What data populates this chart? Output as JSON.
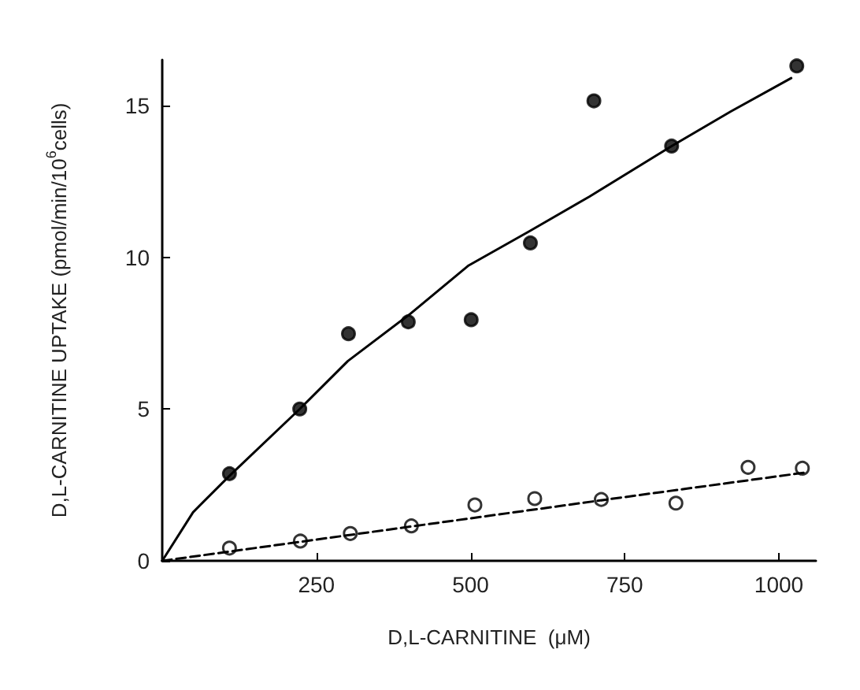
{
  "chart_data": {
    "type": "scatter",
    "xlabel": "D,L-CARNITINE  (μM)",
    "ylabel": "D,L-CARNITINE UPTAKE (pmol/min/10$^{6}$cells)",
    "xlim": [
      0,
      1060
    ],
    "ylim": [
      0,
      16.5
    ],
    "xticks": [
      250,
      500,
      750,
      1000
    ],
    "yticks": [
      0,
      5,
      10,
      15
    ],
    "grid": false,
    "marker": "circle",
    "series": [
      {
        "color": "#000000",
        "x": [
          109,
          223,
          302,
          399,
          501,
          597,
          700,
          826,
          1029
        ],
        "values": [
          2.87,
          5.0,
          7.48,
          7.87,
          7.94,
          10.47,
          15.15,
          13.66,
          16.3
        ]
      },
      {
        "color": "#ffffff",
        "x": [
          109,
          224,
          305,
          404,
          507,
          604,
          712,
          833,
          950,
          1038
        ],
        "values": [
          0.42,
          0.65,
          0.9,
          1.15,
          1.84,
          2.05,
          2.02,
          1.9,
          3.08,
          3.05
        ]
      },
      {
        "type": "line",
        "color": "#000000",
        "line_style": "solid",
        "marker": "none",
        "x": [
          0,
          50,
          109,
          223,
          301,
          400,
          497,
          595,
          693,
          826,
          922,
          1020
        ],
        "values": [
          0,
          1.6,
          2.8,
          5.0,
          6.58,
          8.1,
          9.73,
          10.85,
          12.0,
          13.66,
          14.8,
          15.9
        ]
      },
      {
        "type": "line",
        "color": "#000000",
        "line_style": "dashed",
        "marker": "none",
        "x": [
          0,
          250,
          500,
          750,
          1040
        ],
        "values": [
          0,
          0.7,
          1.4,
          2.1,
          2.9
        ]
      }
    ]
  }
}
